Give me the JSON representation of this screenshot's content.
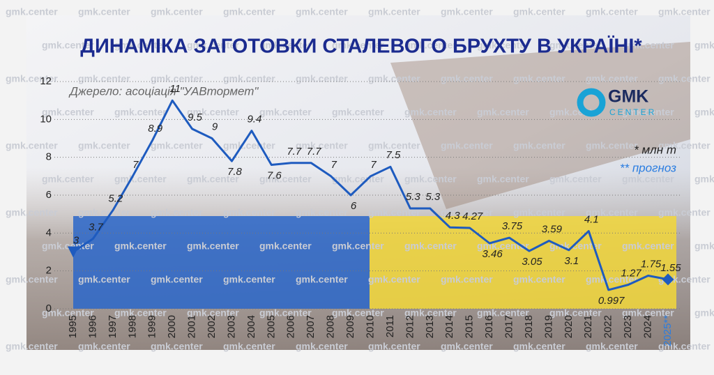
{
  "chart_data": {
    "type": "line",
    "title": "ДИНАМІКА ЗАГОТОВКИ СТАЛЕВОГО БРУХТУ В УКРАЇНІ*",
    "subtitle": "Джерело: асоціація \"УАВтормет\"",
    "unit_note": "* млн т",
    "forecast_note": "** прогноз",
    "logo": {
      "top": "GMK",
      "bottom": "CENTER"
    },
    "watermark": "gmk.center",
    "categories": [
      "1995",
      "1996",
      "1997",
      "1998",
      "1999",
      "2000",
      "2001",
      "2002",
      "2003",
      "2004",
      "2005",
      "2006",
      "2007",
      "2008",
      "2009",
      "2010",
      "2011",
      "2012",
      "2013",
      "2014",
      "2015",
      "2016",
      "2017",
      "2018",
      "2019",
      "2020",
      "2021",
      "2022",
      "2023",
      "2024",
      "2025**"
    ],
    "series": [
      {
        "color": "#1e5bbf",
        "values": [
          3,
          3.7,
          5.2,
          7,
          8.9,
          11,
          9.5,
          9,
          7.8,
          9.4,
          7.6,
          7.7,
          7.7,
          7,
          6,
          7,
          7.5,
          5.3,
          5.3,
          4.3,
          4.27,
          3.46,
          3.75,
          3.05,
          3.59,
          3.1,
          4.1,
          0.997,
          1.27,
          1.75,
          1.55
        ]
      }
    ],
    "forecast_color": "#2a7de1",
    "ylim": [
      0,
      12
    ],
    "yticks": [
      0,
      2,
      4,
      6,
      8,
      10,
      12
    ],
    "grid": true
  }
}
